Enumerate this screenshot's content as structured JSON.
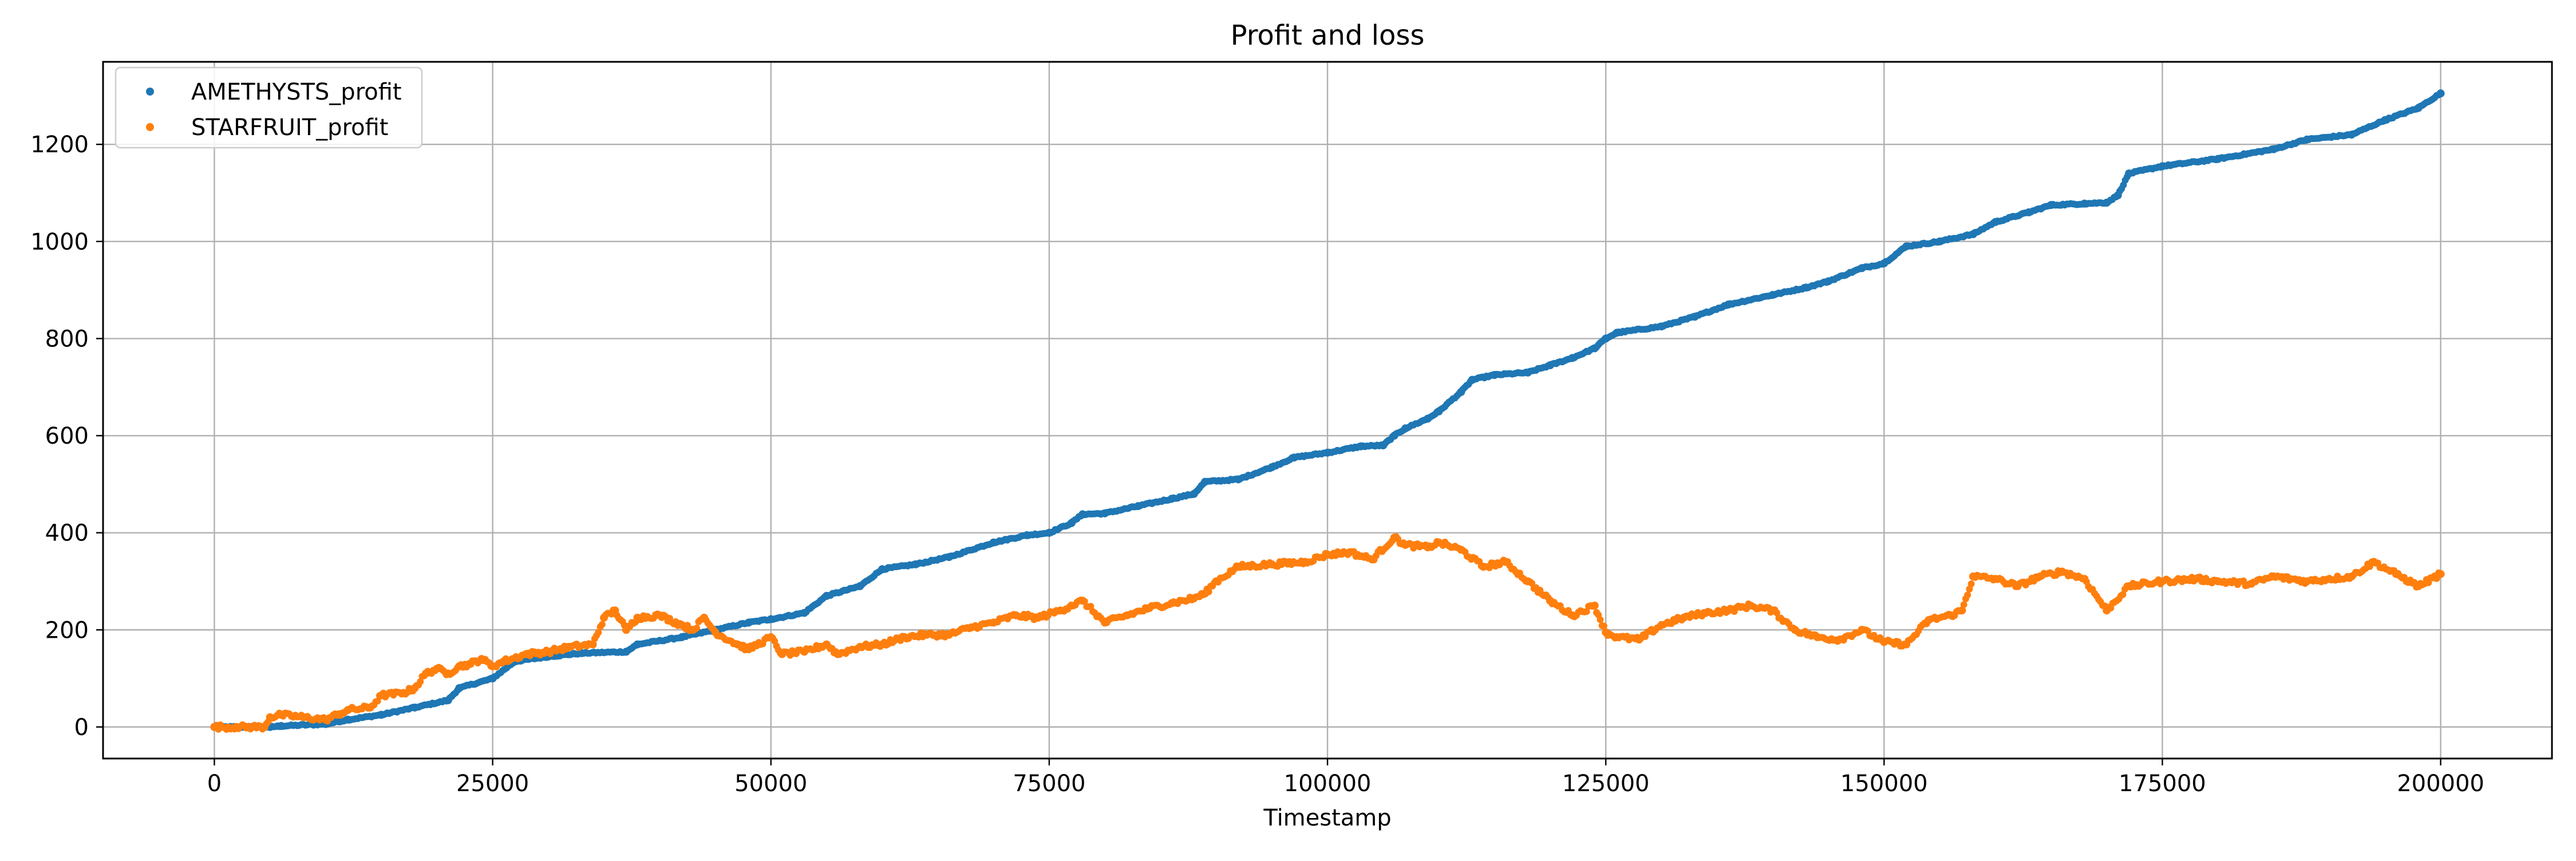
{
  "chart_data": {
    "type": "scatter",
    "title": "Profit and loss",
    "xlabel": "Timestamp",
    "ylabel": "",
    "xlim": [
      -10000,
      210000
    ],
    "ylim": [
      -65,
      1370
    ],
    "xticks": [
      0,
      25000,
      50000,
      75000,
      100000,
      125000,
      150000,
      175000,
      200000
    ],
    "yticks": [
      0,
      200,
      400,
      600,
      800,
      1000,
      1200
    ],
    "grid": true,
    "legend_position": "top-left",
    "series": [
      {
        "name": "AMETHYSTS_profit",
        "color": "#1f77b4",
        "x": [
          0,
          5000,
          6000,
          10000,
          12000,
          15000,
          18000,
          21000,
          22000,
          25000,
          27000,
          30000,
          33000,
          37000,
          38000,
          42000,
          45000,
          48000,
          50000,
          53000,
          55000,
          58000,
          60000,
          63000,
          66000,
          70000,
          73000,
          75000,
          77000,
          78000,
          80000,
          83000,
          86000,
          88000,
          89000,
          92000,
          95000,
          97000,
          100000,
          103000,
          105000,
          106000,
          107000,
          109000,
          110000,
          112000,
          113000,
          115000,
          118000,
          120000,
          122000,
          124000,
          125000,
          126000,
          130000,
          133000,
          136000,
          140000,
          143000,
          145000,
          148000,
          150000,
          152000,
          155000,
          158000,
          160000,
          163000,
          165000,
          168000,
          170000,
          171000,
          172000,
          175000,
          180000,
          185000,
          188000,
          192000,
          195000,
          198000,
          200000
        ],
        "y": [
          0,
          0,
          2,
          6,
          15,
          25,
          40,
          55,
          80,
          100,
          135,
          145,
          152,
          155,
          170,
          185,
          200,
          215,
          222,
          235,
          270,
          290,
          325,
          335,
          350,
          380,
          395,
          400,
          420,
          438,
          440,
          455,
          470,
          480,
          505,
          510,
          535,
          555,
          565,
          578,
          580,
          600,
          615,
          635,
          650,
          690,
          715,
          725,
          730,
          745,
          760,
          780,
          800,
          812,
          825,
          845,
          870,
          890,
          905,
          918,
          945,
          955,
          990,
          1000,
          1015,
          1040,
          1060,
          1075,
          1078,
          1080,
          1095,
          1140,
          1155,
          1170,
          1190,
          1210,
          1220,
          1250,
          1275,
          1305
        ]
      },
      {
        "name": "STARFRUIT_profit",
        "color": "#ff7f0e",
        "x": [
          0,
          2000,
          4500,
          5000,
          6000,
          8000,
          10000,
          11000,
          12000,
          14000,
          15000,
          17000,
          18000,
          19000,
          20000,
          21000,
          22000,
          23000,
          24000,
          25000,
          26000,
          28000,
          30000,
          32000,
          34000,
          35000,
          36000,
          37000,
          38000,
          40000,
          42000,
          43000,
          44000,
          45000,
          47000,
          48000,
          50000,
          51000,
          53000,
          55000,
          56000,
          58000,
          60000,
          62000,
          64000,
          66000,
          68000,
          70000,
          72000,
          74000,
          76000,
          77000,
          78000,
          80000,
          82000,
          84000,
          86000,
          88000,
          89000,
          90000,
          92000,
          95000,
          98000,
          100000,
          102000,
          104000,
          106000,
          107000,
          109000,
          110000,
          112000,
          114000,
          116000,
          118000,
          120000,
          122000,
          124000,
          125000,
          126000,
          128000,
          130000,
          132000,
          134000,
          136000,
          138000,
          140000,
          142000,
          144000,
          146000,
          148000,
          150000,
          152000,
          154000,
          156000,
          157000,
          158000,
          160000,
          162000,
          164000,
          166000,
          168000,
          170000,
          172000,
          175000,
          178000,
          180000,
          183000,
          185000,
          188000,
          190000,
          192000,
          194000,
          196000,
          198000,
          200000
        ],
        "y": [
          0,
          0,
          0,
          20,
          25,
          20,
          15,
          25,
          35,
          40,
          65,
          70,
          80,
          110,
          120,
          110,
          125,
          130,
          140,
          125,
          135,
          150,
          155,
          165,
          170,
          225,
          240,
          200,
          225,
          230,
          210,
          200,
          225,
          195,
          170,
          160,
          185,
          150,
          155,
          170,
          150,
          165,
          170,
          185,
          190,
          190,
          205,
          215,
          230,
          225,
          240,
          250,
          260,
          215,
          230,
          245,
          255,
          265,
          275,
          300,
          330,
          335,
          340,
          355,
          360,
          345,
          390,
          375,
          370,
          380,
          365,
          330,
          340,
          300,
          260,
          230,
          250,
          195,
          185,
          180,
          210,
          225,
          235,
          240,
          250,
          240,
          200,
          185,
          180,
          200,
          175,
          170,
          220,
          230,
          240,
          310,
          305,
          290,
          310,
          320,
          305,
          240,
          290,
          300,
          305,
          300,
          295,
          310,
          300,
          305,
          310,
          340,
          315,
          290,
          315
        ]
      }
    ]
  }
}
